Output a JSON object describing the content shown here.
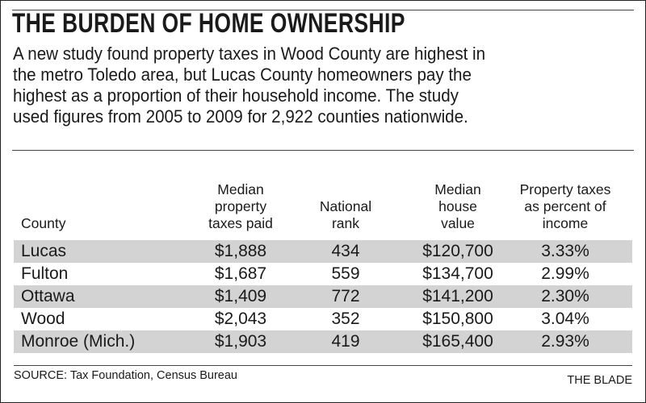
{
  "title": "THE BURDEN OF HOME OWNERSHIP",
  "intro_lines": [
    "A new study found property taxes in Wood County are highest in",
    "the metro Toledo area, but Lucas County homeowners pay the",
    "highest as a proportion of their household income. The study",
    "used figures from 2005 to 2009 for 2,922 counties nationwide."
  ],
  "columns": [
    {
      "lines": [
        "County"
      ]
    },
    {
      "lines": [
        "Median",
        "property",
        "taxes paid"
      ]
    },
    {
      "lines": [
        "National",
        "rank"
      ]
    },
    {
      "lines": [
        "Median",
        "house",
        "value"
      ]
    },
    {
      "lines": [
        "Property taxes",
        "as percent of",
        "income"
      ]
    }
  ],
  "rows": [
    [
      "Lucas",
      "$1,888",
      "434",
      "$120,700",
      "3.33%"
    ],
    [
      "Fulton",
      "$1,687",
      "559",
      "$134,700",
      "2.99%"
    ],
    [
      "Ottawa",
      "$1,409",
      "772",
      "$141,200",
      "2.30%"
    ],
    [
      "Wood",
      "$2,043",
      "352",
      "$150,800",
      "3.04%"
    ],
    [
      "Monroe (Mich.)",
      "$1,903",
      "419",
      "$165,400",
      "2.93%"
    ]
  ],
  "source": "SOURCE: Tax Foundation, Census Bureau",
  "credit": "THE BLADE",
  "colors": {
    "shade": "#d3d3d3",
    "text": "#1a1a1a"
  }
}
